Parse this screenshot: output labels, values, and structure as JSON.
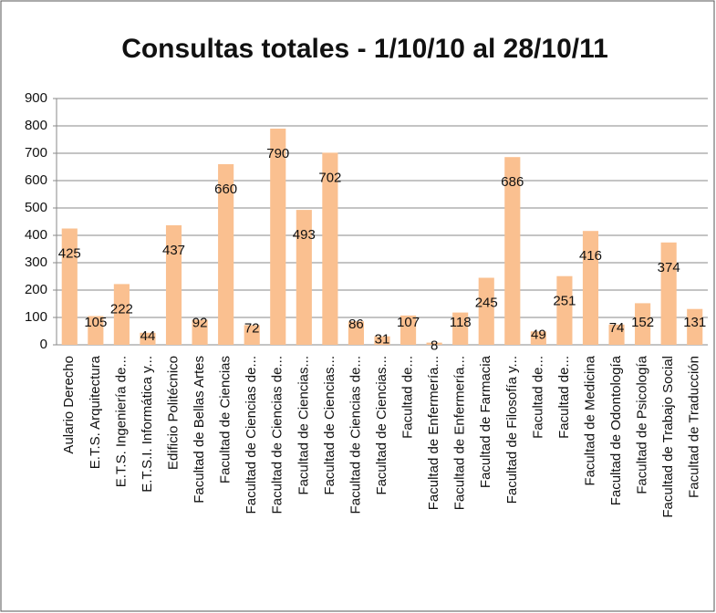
{
  "chart_data": {
    "type": "bar",
    "title": "Consultas totales - 1/10/10 al 28/10/11",
    "categories": [
      "Aulario Derecho",
      "E.T.S. Arquitectura",
      "E.T.S. Ingeniería de...",
      "E.T.S.I. Informática y...",
      "Edificio Politécnico",
      "Facultad de Bellas Artes",
      "Facultad de Ciencias",
      "Facultad de Ciencias de...",
      "Facultad de Ciencias de...",
      "Facultad de Ciencias...",
      "Facultad de Ciencias...",
      "Facultad de Ciencias de...",
      "Facultad de Ciencias...",
      "Facultad de...",
      "Facultad de Enfermería...",
      "Facultad de Enfermería...",
      "Facultad de Farmacia",
      "Facultad de Filosofía y...",
      "Facultad de...",
      "Facultad de...",
      "Facultad de Medicina",
      "Facultad de Odontología",
      "Facultad de Psicología",
      "Facultad de Trabajo Social",
      "Facultad de Traducción"
    ],
    "values": [
      425,
      105,
      222,
      44,
      437,
      92,
      660,
      72,
      790,
      493,
      702,
      86,
      31,
      107,
      8,
      118,
      245,
      686,
      49,
      251,
      416,
      74,
      152,
      374,
      131
    ],
    "color": "#fac090",
    "ylim": [
      0,
      900
    ],
    "yticks": [
      0,
      100,
      200,
      300,
      400,
      500,
      600,
      700,
      800,
      900
    ],
    "grid": true
  }
}
